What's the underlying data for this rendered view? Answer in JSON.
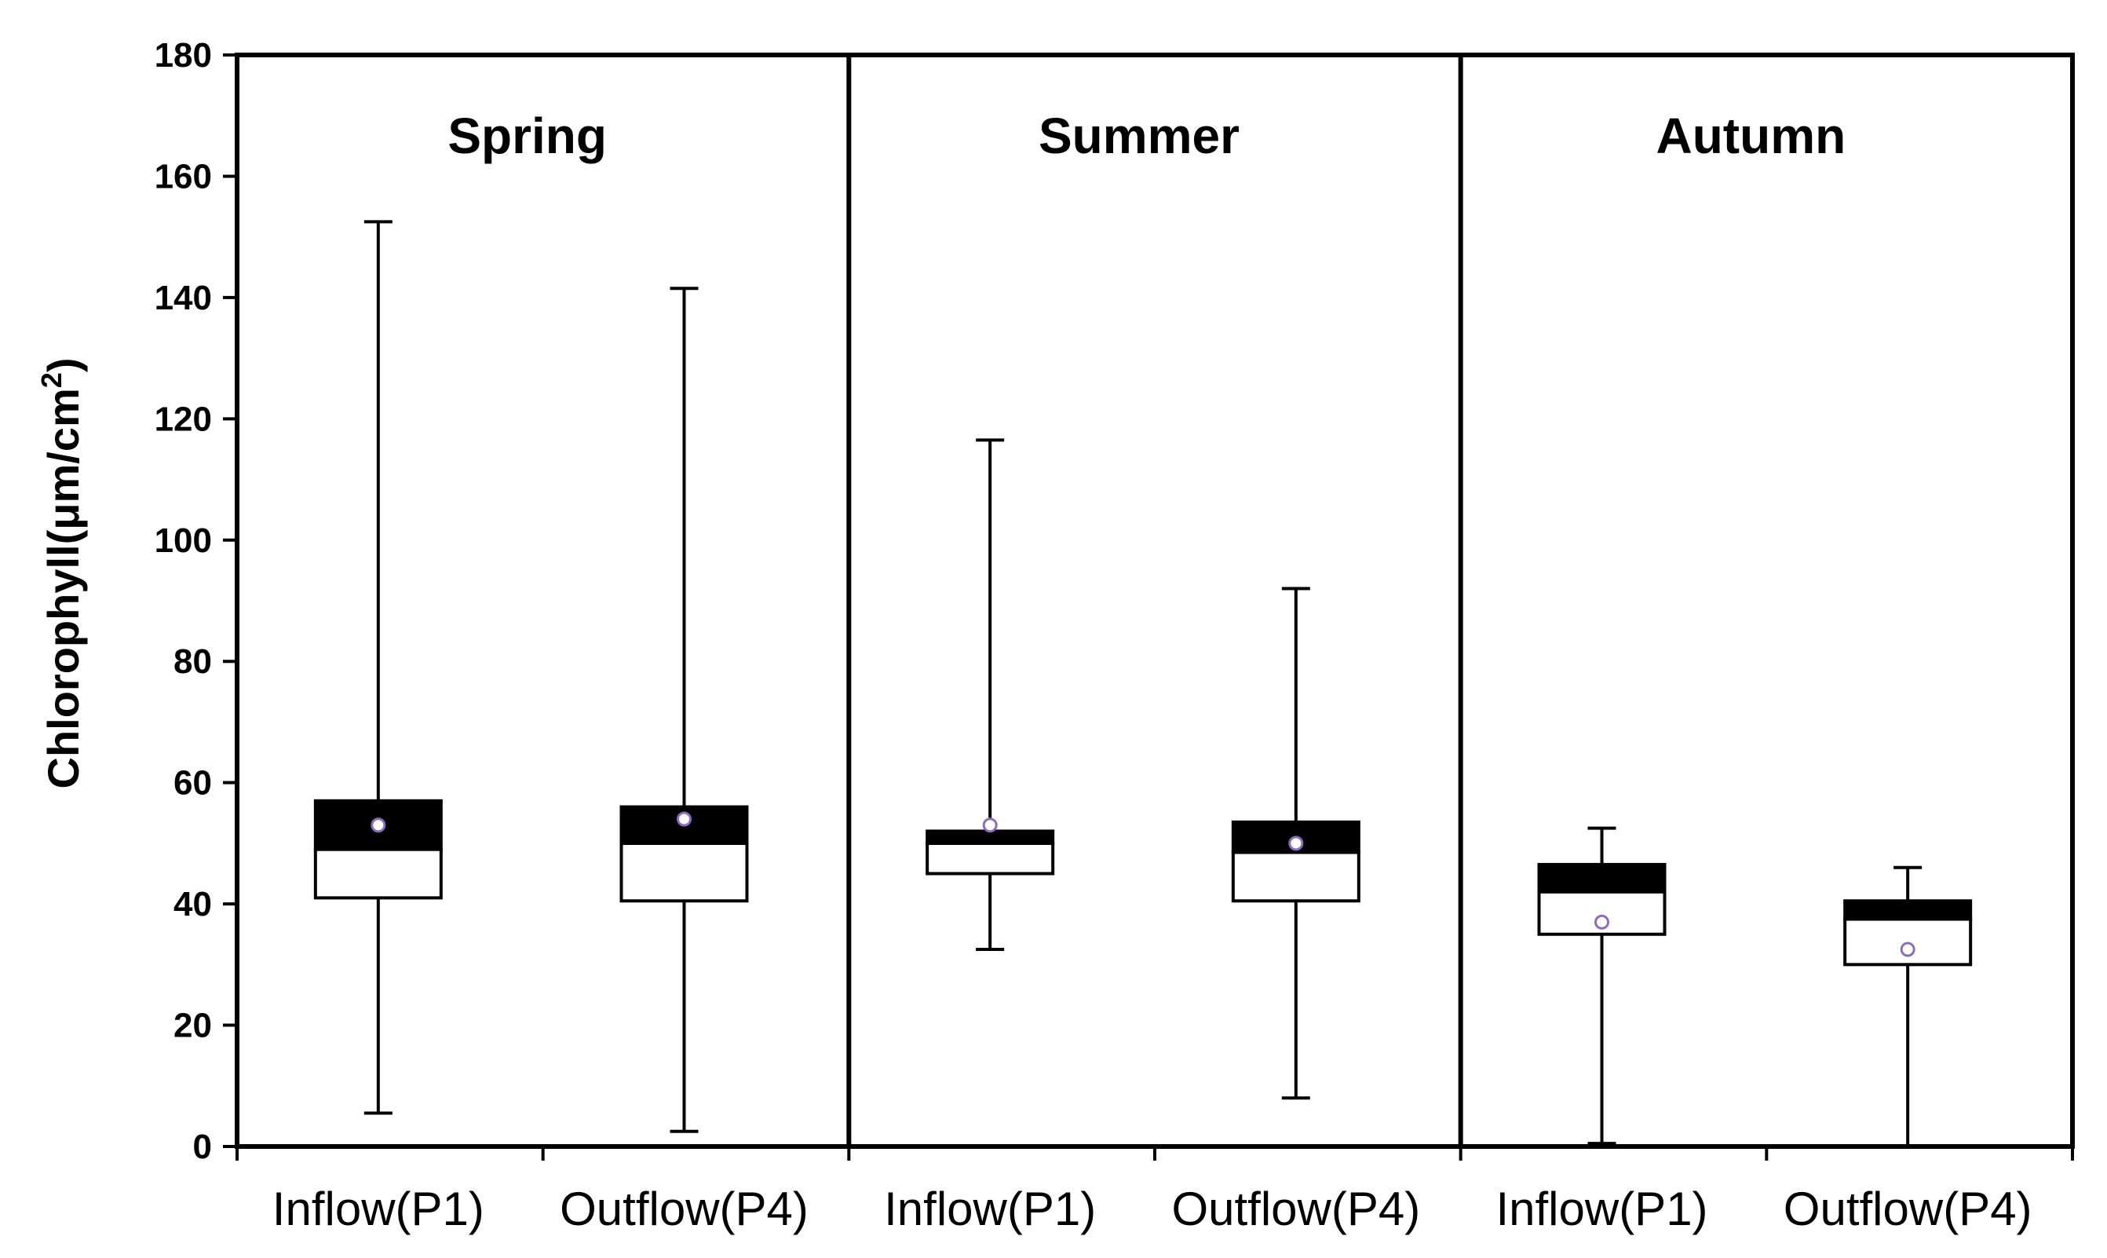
{
  "chart_data": {
    "type": "box",
    "ylabel": "Chlorophyll(μm/cm²)",
    "ylabel_main": "Chlorophyll(μm/cm",
    "ylabel_sup": "2",
    "ylabel_tail": ")",
    "ylim": [
      0,
      180
    ],
    "yticks": [
      0,
      20,
      40,
      60,
      80,
      100,
      120,
      140,
      160,
      180
    ],
    "grid": false,
    "legend": "none",
    "groups": [
      {
        "name": "Spring",
        "boxes": [
          {
            "category": "Inflow(P1)",
            "min": 5.5,
            "q1": 41,
            "median": 49,
            "q3": 57,
            "max": 152.5,
            "mean": 53
          },
          {
            "category": "Outflow(P4)",
            "min": 2.5,
            "q1": 40.5,
            "median": 50,
            "q3": 56,
            "max": 141.5,
            "mean": 54
          }
        ]
      },
      {
        "name": "Summer",
        "boxes": [
          {
            "category": "Inflow(P1)",
            "min": 32.5,
            "q1": 45,
            "median": 50,
            "q3": 52,
            "max": 116.5,
            "mean": 53
          },
          {
            "category": "Outflow(P4)",
            "min": 8,
            "q1": 40.5,
            "median": 48.5,
            "q3": 53.5,
            "max": 92,
            "mean": 50
          }
        ]
      },
      {
        "name": "Autumn",
        "boxes": [
          {
            "category": "Inflow(P1)",
            "min": 0.5,
            "q1": 35,
            "median": 42,
            "q3": 46.5,
            "max": 52.5,
            "mean": 37
          },
          {
            "category": "Outflow(P4)",
            "min": 0,
            "q1": 30,
            "median": 37.5,
            "q3": 40.5,
            "max": 46,
            "mean": 32.5
          }
        ]
      }
    ]
  },
  "colors": {
    "axis": "#000000",
    "box_lower": "#ffffff",
    "box_upper": "#000000",
    "mean_marker_stroke": "#8e6bbf",
    "mean_marker_fill": "#ffffff"
  }
}
